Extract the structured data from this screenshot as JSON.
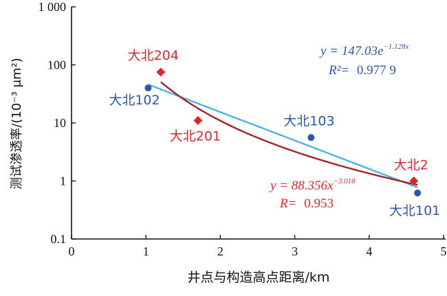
{
  "chart_data": {
    "type": "scatter",
    "xlabel": "井点与构造高点距离/km",
    "ylabel": "测试渗透率/(10⁻³ μm²)",
    "xlim": [
      0,
      5
    ],
    "ylim": [
      0.1,
      1000
    ],
    "yscale": "log",
    "x_ticks": [
      "0",
      "1",
      "2",
      "3",
      "4",
      "5"
    ],
    "y_ticks": [
      "0.1",
      "1",
      "10",
      "100",
      "1 000"
    ],
    "grid": false,
    "colors": {
      "blue_points": "#2b58ae",
      "red_points": "#e0262b",
      "exp_fit": "#4ab4e6",
      "power_fit": "#a52226",
      "blue_text": "#2b58ae",
      "red_text": "#e0262b"
    },
    "series": [
      {
        "marker": "circle",
        "color": "#2b58ae",
        "points": [
          {
            "label": "大北102",
            "x": 1.03,
            "y": 40
          },
          {
            "label": "大北103",
            "x": 3.22,
            "y": 5.6
          },
          {
            "label": "大北101",
            "x": 4.65,
            "y": 0.62
          }
        ]
      },
      {
        "marker": "diamond",
        "color": "#e0262b",
        "points": [
          {
            "label": "大北204",
            "x": 1.2,
            "y": 75
          },
          {
            "label": "大北201",
            "x": 1.7,
            "y": 11
          },
          {
            "label": "大北2",
            "x": 4.6,
            "y": 1.0
          }
        ]
      }
    ],
    "fits": [
      {
        "kind": "exponential",
        "color": "#4ab4e6",
        "a": 147.03,
        "b": -1.128,
        "x_range": [
          1.03,
          4.65
        ],
        "equation_lhs": "y = 147.03e",
        "equation_exp": "−1.128x",
        "r2_label": "R²=",
        "r2_value": "0.977 9"
      },
      {
        "kind": "power",
        "color": "#a52226",
        "a": 88.356,
        "b": -3.018,
        "x_range": [
          1.2,
          4.65
        ],
        "equation_lhs": "y = 88.356x",
        "equation_exp": "−3.018",
        "r_label": "R=",
        "r_value": "0.953"
      }
    ]
  }
}
